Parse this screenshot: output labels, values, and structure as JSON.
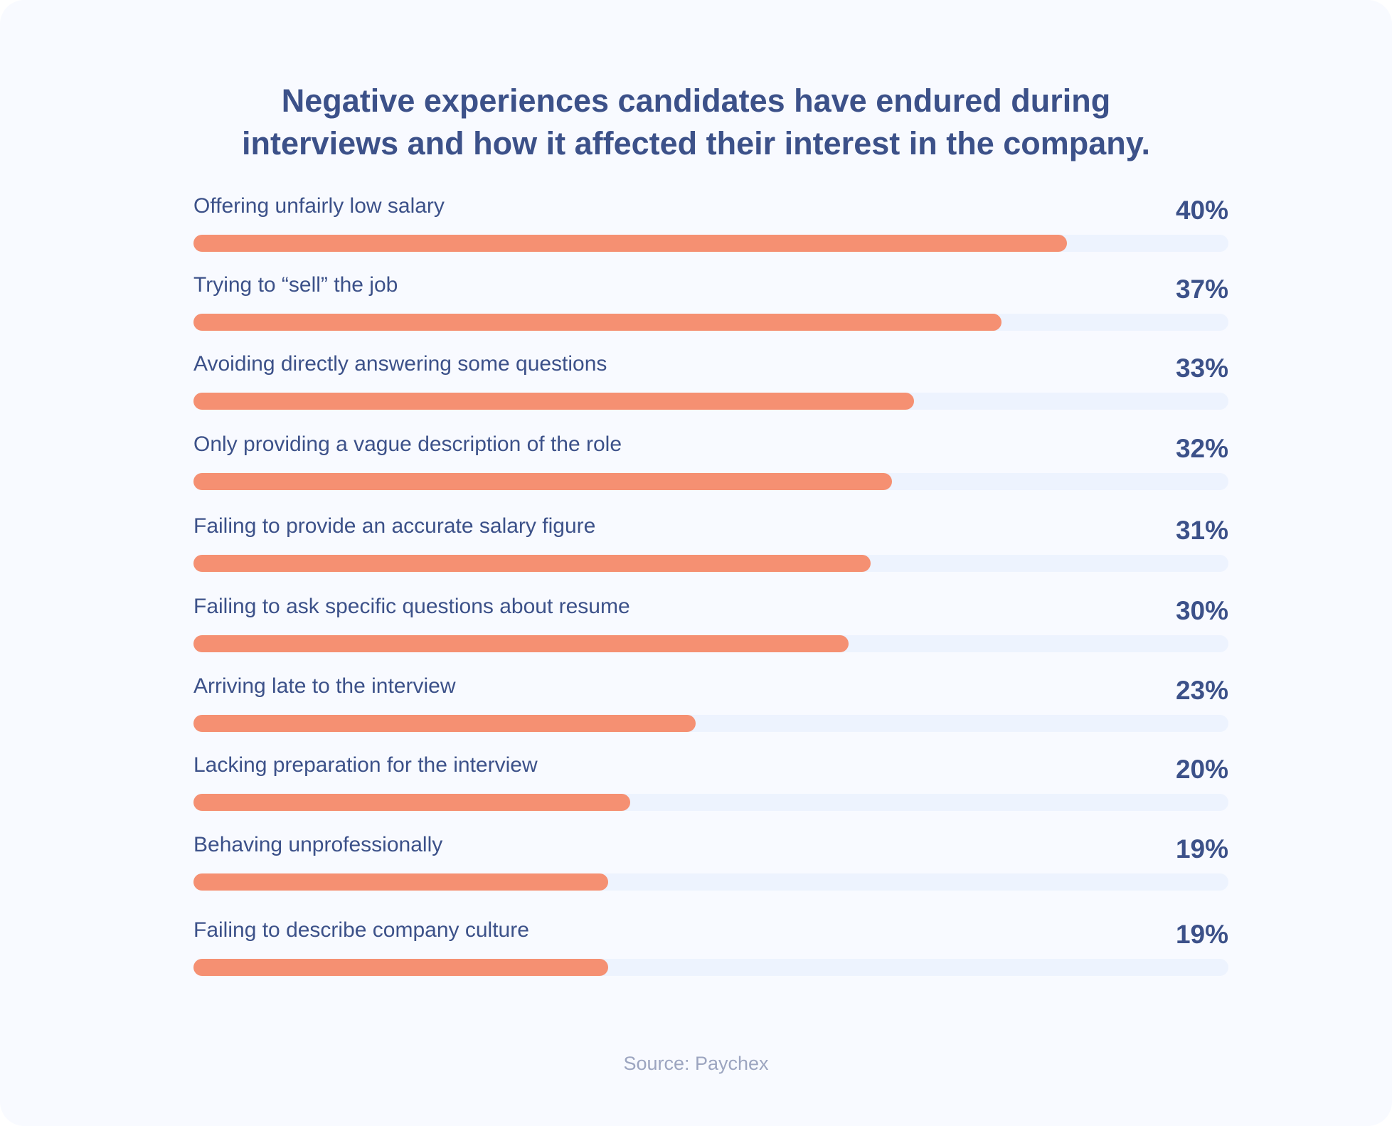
{
  "chart_data": {
    "type": "bar",
    "orientation": "horizontal",
    "title": "Negative experiences candidates have endured during interviews and how it affected their interest in the company.",
    "title_lines": [
      "Negative experiences candidates have endured during",
      "interviews and how it affected their interest in the company."
    ],
    "categories": [
      "Offering unfairly low salary",
      "Trying to “sell” the job",
      "Avoiding directly answering some questions",
      "Only providing a vague description of the role",
      "Failing to provide an accurate salary figure",
      "Failing to ask specific questions about resume",
      "Arriving late to the interview",
      "Lacking preparation for the interview",
      "Behaving unprofessionally",
      "Failing to describe company culture"
    ],
    "values": [
      40,
      37,
      33,
      32,
      31,
      30,
      23,
      20,
      19,
      19
    ],
    "value_labels": [
      "40%",
      "37%",
      "33%",
      "32%",
      "31%",
      "30%",
      "23%",
      "20%",
      "19%",
      "19%"
    ],
    "unit": "%",
    "grid": false,
    "colors": {
      "bar": "#f59072",
      "track": "#edf3fe",
      "text": "#3c5189",
      "background": "#f8faff"
    },
    "source": "Source: Paychex"
  }
}
